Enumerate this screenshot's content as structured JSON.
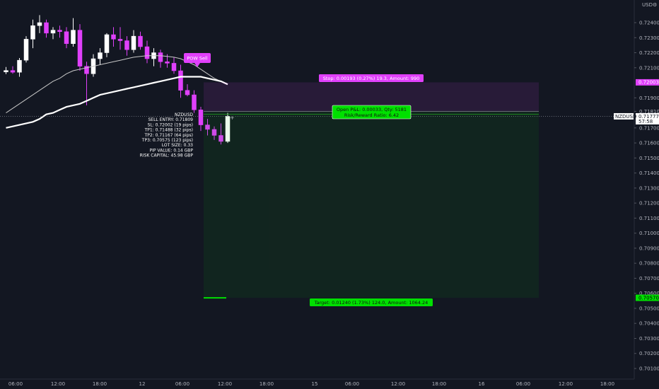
{
  "chart_data": {
    "type": "candlestick",
    "symbol": "NZDUSD",
    "currency": "USD",
    "y_ticks": [
      "0.72400",
      "0.72300",
      "0.72200",
      "0.72100",
      "0.71900",
      "0.71810",
      "0.71700",
      "0.71600",
      "0.71500",
      "0.71400",
      "0.71300",
      "0.71200",
      "0.71100",
      "0.71000",
      "0.70900",
      "0.70800",
      "0.70700",
      "0.70600",
      "0.70500",
      "0.70400",
      "0.70300",
      "0.70200",
      "0.70100"
    ],
    "x_ticks": [
      "06:00",
      "12:00",
      "18:00",
      "12",
      "06:00",
      "12:00",
      "18:00",
      "15",
      "06:00",
      "12:00",
      "18:00",
      "16",
      "06:00",
      "12:00",
      "18:00"
    ],
    "candles": [
      {
        "o": 0.72072,
        "h": 0.72105,
        "l": 0.72058,
        "c": 0.72082
      },
      {
        "o": 0.72082,
        "h": 0.7211,
        "l": 0.7206,
        "c": 0.7207
      },
      {
        "o": 0.7207,
        "h": 0.72165,
        "l": 0.7204,
        "c": 0.7215
      },
      {
        "o": 0.7215,
        "h": 0.7231,
        "l": 0.72135,
        "c": 0.7229
      },
      {
        "o": 0.7229,
        "h": 0.7242,
        "l": 0.7223,
        "c": 0.7238
      },
      {
        "o": 0.7238,
        "h": 0.7245,
        "l": 0.7233,
        "c": 0.724
      },
      {
        "o": 0.724,
        "h": 0.7242,
        "l": 0.723,
        "c": 0.7233
      },
      {
        "o": 0.7233,
        "h": 0.7237,
        "l": 0.7229,
        "c": 0.7235
      },
      {
        "o": 0.7235,
        "h": 0.7238,
        "l": 0.723,
        "c": 0.7234
      },
      {
        "o": 0.7234,
        "h": 0.7237,
        "l": 0.7223,
        "c": 0.7226
      },
      {
        "o": 0.7226,
        "h": 0.7243,
        "l": 0.7224,
        "c": 0.7235
      },
      {
        "o": 0.7235,
        "h": 0.7239,
        "l": 0.7208,
        "c": 0.7211
      },
      {
        "o": 0.7211,
        "h": 0.7214,
        "l": 0.7185,
        "c": 0.7206
      },
      {
        "o": 0.7206,
        "h": 0.7219,
        "l": 0.7204,
        "c": 0.7216
      },
      {
        "o": 0.7216,
        "h": 0.7223,
        "l": 0.7212,
        "c": 0.722
      },
      {
        "o": 0.722,
        "h": 0.7233,
        "l": 0.7217,
        "c": 0.7232
      },
      {
        "o": 0.7232,
        "h": 0.7237,
        "l": 0.7224,
        "c": 0.7229
      },
      {
        "o": 0.7229,
        "h": 0.7237,
        "l": 0.7222,
        "c": 0.7228
      },
      {
        "o": 0.7228,
        "h": 0.7231,
        "l": 0.7218,
        "c": 0.7222
      },
      {
        "o": 0.7222,
        "h": 0.7235,
        "l": 0.722,
        "c": 0.7231
      },
      {
        "o": 0.7231,
        "h": 0.7234,
        "l": 0.7222,
        "c": 0.7224
      },
      {
        "o": 0.7224,
        "h": 0.7228,
        "l": 0.7213,
        "c": 0.7216
      },
      {
        "o": 0.7216,
        "h": 0.7223,
        "l": 0.7211,
        "c": 0.722
      },
      {
        "o": 0.722,
        "h": 0.7222,
        "l": 0.721,
        "c": 0.7214
      },
      {
        "o": 0.7214,
        "h": 0.7219,
        "l": 0.721,
        "c": 0.7213
      },
      {
        "o": 0.7213,
        "h": 0.7217,
        "l": 0.7206,
        "c": 0.7208
      },
      {
        "o": 0.7208,
        "h": 0.7212,
        "l": 0.719,
        "c": 0.7195
      },
      {
        "o": 0.7195,
        "h": 0.7199,
        "l": 0.7191,
        "c": 0.7192
      },
      {
        "o": 0.7192,
        "h": 0.7195,
        "l": 0.718,
        "c": 0.7182
      },
      {
        "o": 0.7182,
        "h": 0.7184,
        "l": 0.7168,
        "c": 0.7172
      },
      {
        "o": 0.7172,
        "h": 0.7176,
        "l": 0.7165,
        "c": 0.7169
      },
      {
        "o": 0.7169,
        "h": 0.7171,
        "l": 0.7162,
        "c": 0.7165
      },
      {
        "o": 0.7165,
        "h": 0.7173,
        "l": 0.7159,
        "c": 0.7161
      },
      {
        "o": 0.7161,
        "h": 0.718,
        "l": 0.716,
        "c": 0.71777
      }
    ],
    "ema_fast": [
      0.717,
      0.7171,
      0.7172,
      0.7173,
      0.7174,
      0.7176,
      0.7179,
      0.718,
      0.7182,
      0.7184,
      0.7185,
      0.7186,
      0.7188,
      0.719,
      0.7192,
      0.7193,
      0.7194,
      0.7195,
      0.7196,
      0.7197,
      0.7198,
      0.7199,
      0.72,
      0.7201,
      0.7202,
      0.7203,
      0.7204,
      0.7204,
      0.7204,
      0.7204,
      0.7203,
      0.7202,
      0.7201,
      0.7199
    ],
    "ema_slow": [
      0.718,
      0.7183,
      0.7186,
      0.7189,
      0.7192,
      0.7195,
      0.7198,
      0.7201,
      0.7203,
      0.7206,
      0.7208,
      0.7209,
      0.721,
      0.7211,
      0.7212,
      0.7213,
      0.7214,
      0.7215,
      0.7216,
      0.7217,
      0.72175,
      0.7218,
      0.7218,
      0.7218,
      0.72175,
      0.7217,
      0.7216,
      0.7214,
      0.7212,
      0.7209,
      0.7206,
      0.7203,
      0.7201,
      0.7199
    ],
    "current_price": "0.71777",
    "countdown": "57:58",
    "entry_price": "0.71810",
    "stop_price": "0.72003",
    "target_price": "0.70570",
    "stop_label": "Stop: 0.00193 (0.27%) 19.3, Amount: 990",
    "pnl_label": "Open P&L: 0.00033, Qty: 5181",
    "rr_label": "Risk/Reward Ratio: 6.42",
    "target_label": "Target: 0.01240 (1.73%) 124.0, Amount: 1064.24",
    "signal_label": "POW Sell",
    "info_lines": [
      "NZDUSD",
      "SELL ENTRY: 0.71809",
      "SL: 0.72002 (19 pips)",
      "TP1: 0.71488 (32 pips)",
      "TP2: 0.71167 (64 pips)",
      "TP3: 0.70575 (123 pips)",
      "LOT SIZE: 0.33",
      "PIP VALUE: 0.14 GBP",
      "RISK CAPITAL: 45.98 GBP"
    ],
    "colors": {
      "background": "#131722",
      "up": "#ffffff",
      "down": "#e040fb",
      "stop": "#e040fb",
      "target": "#00e000",
      "ema_fast": "#ffffff",
      "ema_slow": "#c7c7c7"
    }
  }
}
